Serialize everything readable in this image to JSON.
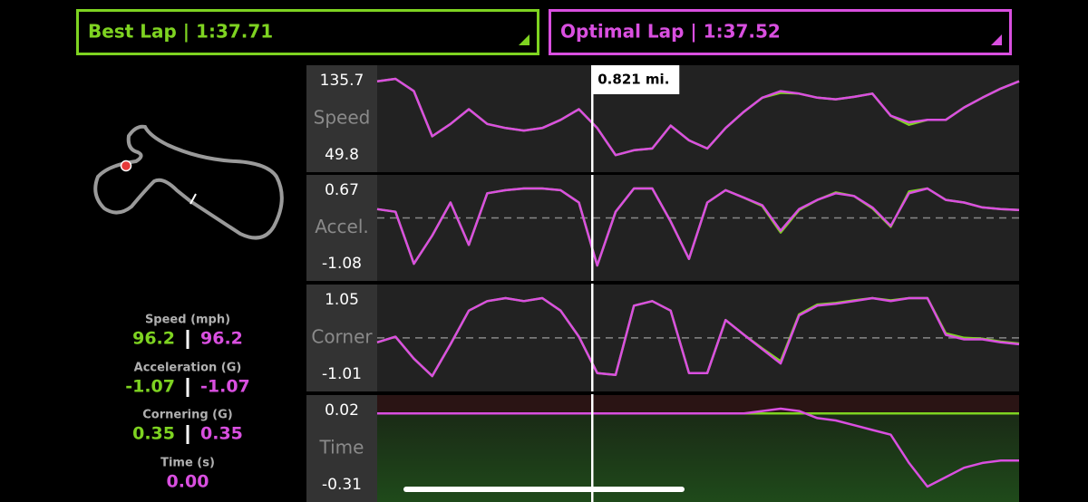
{
  "header": {
    "best_lap": "Best Lap | 1:37.71",
    "optimal_lap": "Optimal Lap | 1:37.52"
  },
  "cursor": {
    "value": 0.821,
    "label": "0.821 mi."
  },
  "stats": [
    {
      "label": "Speed (mph)",
      "best": "96.2",
      "optimal": "96.2"
    },
    {
      "label": "Acceleration (G)",
      "best": "-1.07",
      "optimal": "-1.07"
    },
    {
      "label": "Cornering (G)",
      "best": "0.35",
      "optimal": "0.35"
    },
    {
      "label": "Time (s)",
      "optimal": "0.00"
    }
  ],
  "chart_data": [
    {
      "type": "line",
      "name": "Speed",
      "xlim": [
        0,
        2.45
      ],
      "ylim": [
        49.8,
        135.7
      ],
      "zero_line": false,
      "x": [
        0,
        0.07,
        0.14,
        0.21,
        0.28,
        0.35,
        0.42,
        0.49,
        0.56,
        0.63,
        0.7,
        0.77,
        0.84,
        0.91,
        0.98,
        1.05,
        1.12,
        1.19,
        1.26,
        1.33,
        1.4,
        1.47,
        1.54,
        1.61,
        1.68,
        1.75,
        1.82,
        1.89,
        1.96,
        2.03,
        2.1,
        2.17,
        2.24,
        2.31,
        2.38,
        2.45
      ],
      "series": [
        {
          "name": "Best Lap",
          "color": "#7ed321",
          "values": [
            133.0,
            135.7,
            122.1,
            72.4,
            86.0,
            102.2,
            86.0,
            81.5,
            78.7,
            81.5,
            90.5,
            102.2,
            81.5,
            51.6,
            57.0,
            58.9,
            84.2,
            67.9,
            58.9,
            81.5,
            99.5,
            114.9,
            120.3,
            119.4,
            114.9,
            113.1,
            115.8,
            119.4,
            95.0,
            85.1,
            90.5,
            90.5,
            104.1,
            114.9,
            124.9,
            133.0
          ]
        },
        {
          "name": "Optimal Lap",
          "color": "#d94fe0",
          "values": [
            133.0,
            135.7,
            122.1,
            72.4,
            86.0,
            102.2,
            86.0,
            81.5,
            78.7,
            81.5,
            90.5,
            102.2,
            81.5,
            51.6,
            57.0,
            58.9,
            84.2,
            67.9,
            58.9,
            81.5,
            99.5,
            114.9,
            122.1,
            119.4,
            114.9,
            113.1,
            115.8,
            119.4,
            95.0,
            87.8,
            90.5,
            90.5,
            104.1,
            114.9,
            124.9,
            133.0
          ]
        }
      ]
    },
    {
      "type": "line",
      "name": "Accel.",
      "xlim": [
        0,
        2.45
      ],
      "ylim": [
        -1.08,
        0.67
      ],
      "zero_line": true,
      "x": [
        0,
        0.07,
        0.14,
        0.21,
        0.28,
        0.35,
        0.42,
        0.49,
        0.56,
        0.63,
        0.7,
        0.77,
        0.84,
        0.91,
        0.98,
        1.05,
        1.12,
        1.19,
        1.26,
        1.33,
        1.4,
        1.47,
        1.54,
        1.61,
        1.68,
        1.75,
        1.82,
        1.89,
        1.96,
        2.03,
        2.1,
        2.17,
        2.24,
        2.31,
        2.38,
        2.45
      ],
      "series": [
        {
          "name": "Best Lap",
          "color": "#7ed321",
          "values": [
            0.2,
            0.14,
            -1.04,
            -0.4,
            0.35,
            -0.61,
            0.56,
            0.63,
            0.67,
            0.67,
            0.63,
            0.35,
            -1.08,
            0.14,
            0.67,
            0.67,
            -0.08,
            -0.93,
            0.35,
            0.63,
            0.46,
            0.27,
            -0.33,
            0.18,
            0.41,
            0.58,
            0.5,
            0.22,
            -0.2,
            0.6,
            0.67,
            0.41,
            0.35,
            0.24,
            0.2,
            0.18
          ]
        },
        {
          "name": "Optimal Lap",
          "color": "#d94fe0",
          "values": [
            0.2,
            0.14,
            -1.04,
            -0.4,
            0.35,
            -0.61,
            0.56,
            0.63,
            0.67,
            0.67,
            0.63,
            0.35,
            -1.08,
            0.14,
            0.67,
            0.67,
            -0.08,
            -0.93,
            0.35,
            0.63,
            0.46,
            0.29,
            -0.29,
            0.2,
            0.41,
            0.56,
            0.5,
            0.24,
            -0.18,
            0.56,
            0.67,
            0.41,
            0.35,
            0.24,
            0.2,
            0.18
          ]
        }
      ]
    },
    {
      "type": "line",
      "name": "Corner",
      "xlim": [
        0,
        2.45
      ],
      "ylim": [
        -1.01,
        1.05
      ],
      "zero_line": true,
      "x": [
        0,
        0.07,
        0.14,
        0.21,
        0.28,
        0.35,
        0.42,
        0.49,
        0.56,
        0.63,
        0.7,
        0.77,
        0.84,
        0.91,
        0.98,
        1.05,
        1.12,
        1.19,
        1.26,
        1.33,
        1.4,
        1.47,
        1.54,
        1.61,
        1.68,
        1.75,
        1.82,
        1.89,
        1.96,
        2.03,
        2.1,
        2.17,
        2.24,
        2.31,
        2.38,
        2.45
      ],
      "series": [
        {
          "name": "Best Lap",
          "color": "#7ed321",
          "values": [
            -0.12,
            0.03,
            -0.55,
            -1.01,
            -0.17,
            0.72,
            0.97,
            1.05,
            0.97,
            1.05,
            0.72,
            0.03,
            -0.93,
            -0.98,
            0.85,
            0.97,
            0.72,
            -0.93,
            -0.93,
            0.47,
            0.08,
            -0.28,
            -0.62,
            0.62,
            0.88,
            0.92,
            0.99,
            1.05,
            0.99,
            1.05,
            1.05,
            0.12,
            0.0,
            -0.02,
            -0.1,
            -0.15
          ]
        },
        {
          "name": "Optimal Lap",
          "color": "#d94fe0",
          "values": [
            -0.12,
            0.03,
            -0.55,
            -1.01,
            -0.17,
            0.72,
            0.97,
            1.05,
            0.97,
            1.05,
            0.72,
            0.03,
            -0.93,
            -0.98,
            0.85,
            0.97,
            0.72,
            -0.93,
            -0.93,
            0.47,
            0.08,
            -0.3,
            -0.68,
            0.59,
            0.85,
            0.9,
            0.97,
            1.05,
            0.97,
            1.05,
            1.05,
            0.08,
            -0.04,
            -0.04,
            -0.12,
            -0.17
          ]
        }
      ]
    },
    {
      "type": "line",
      "name": "Time",
      "xlim": [
        0,
        2.45
      ],
      "ylim": [
        -0.31,
        0.02
      ],
      "zero_line": false,
      "shade": true,
      "x": [
        0,
        0.07,
        0.14,
        0.21,
        0.28,
        0.35,
        0.42,
        0.49,
        0.56,
        0.63,
        0.7,
        0.77,
        0.84,
        0.91,
        0.98,
        1.05,
        1.12,
        1.19,
        1.26,
        1.33,
        1.4,
        1.47,
        1.54,
        1.61,
        1.68,
        1.75,
        1.82,
        1.89,
        1.96,
        2.03,
        2.1,
        2.17,
        2.24,
        2.31,
        2.38,
        2.45
      ],
      "series": [
        {
          "name": "Best Lap",
          "color": "#7ed321",
          "values": [
            0,
            0,
            0,
            0,
            0,
            0,
            0,
            0,
            0,
            0,
            0,
            0,
            0,
            0,
            0,
            0,
            0,
            0,
            0,
            0,
            0,
            0,
            0,
            0,
            0,
            0,
            0,
            0,
            0,
            0,
            0,
            0,
            0,
            0,
            0,
            0
          ]
        },
        {
          "name": "Optimal Lap",
          "color": "#d94fe0",
          "values": [
            0,
            0,
            0,
            0,
            0,
            0,
            0,
            0,
            0,
            0,
            0,
            0,
            0,
            0,
            0,
            0,
            0,
            0,
            0,
            0,
            0,
            0.01,
            0.02,
            0.01,
            -0.02,
            -0.03,
            -0.05,
            -0.07,
            -0.09,
            -0.21,
            -0.31,
            -0.27,
            -0.23,
            -0.21,
            -0.2,
            -0.2
          ]
        }
      ]
    }
  ]
}
